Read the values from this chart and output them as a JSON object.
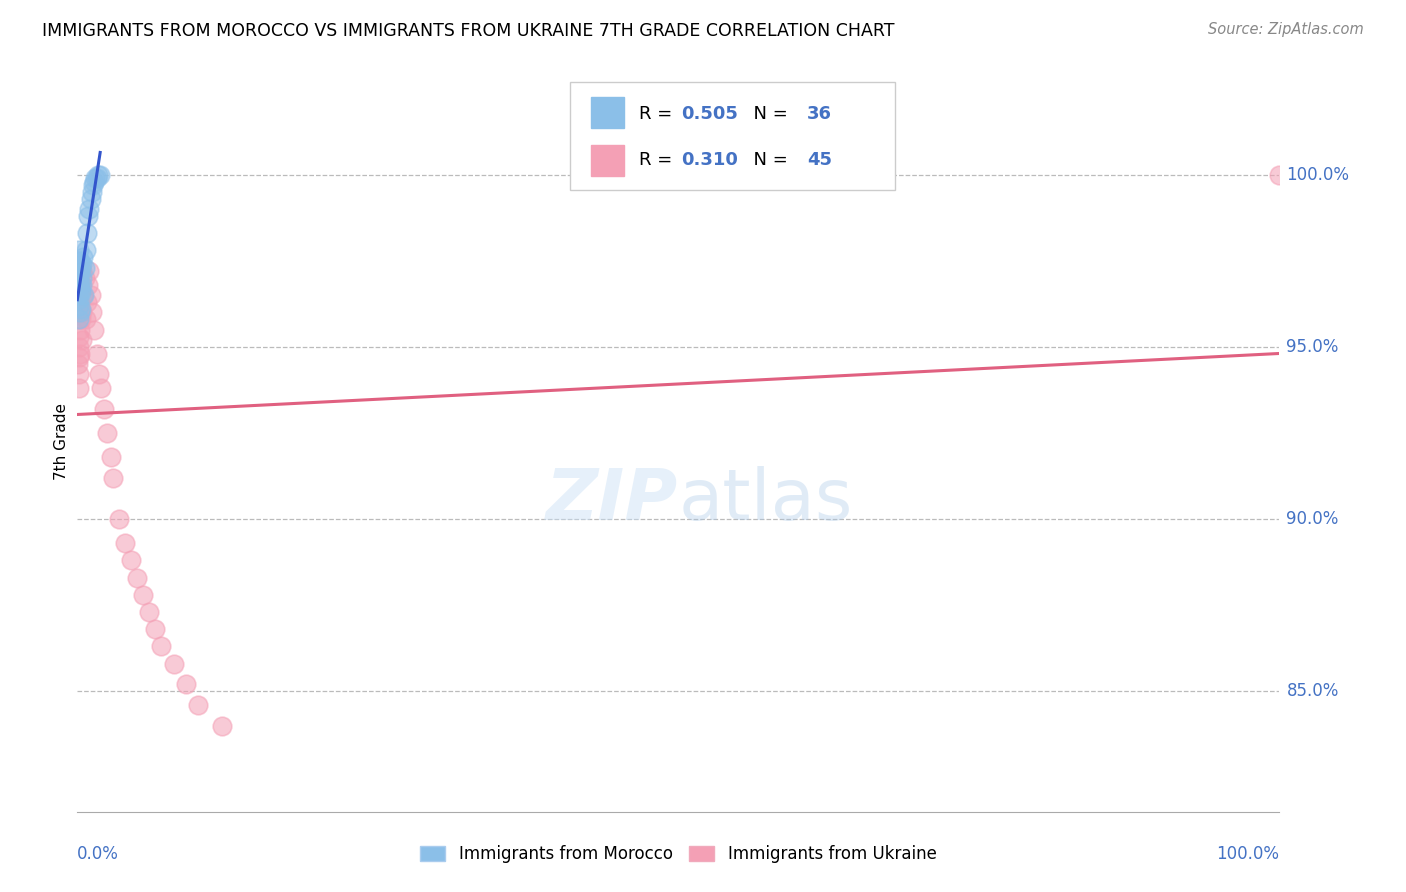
{
  "title": "IMMIGRANTS FROM MOROCCO VS IMMIGRANTS FROM UKRAINE 7TH GRADE CORRELATION CHART",
  "source": "Source: ZipAtlas.com",
  "ylabel": "7th Grade",
  "r_morocco": 0.505,
  "n_morocco": 36,
  "r_ukraine": 0.31,
  "n_ukraine": 45,
  "legend_morocco": "Immigrants from Morocco",
  "legend_ukraine": "Immigrants from Ukraine",
  "color_morocco": "#8BBFE8",
  "color_ukraine": "#F4A0B5",
  "line_color_morocco": "#3355CC",
  "line_color_ukraine": "#E06080",
  "ytick_labels": [
    "100.0%",
    "95.0%",
    "90.0%",
    "85.0%"
  ],
  "ytick_values": [
    1.0,
    0.95,
    0.9,
    0.85
  ],
  "xlim": [
    0.0,
    1.0
  ],
  "ylim": [
    0.815,
    1.03
  ],
  "morocco_x": [
    0.0008,
    0.0009,
    0.001,
    0.001,
    0.0012,
    0.0013,
    0.0015,
    0.0015,
    0.0016,
    0.0018,
    0.002,
    0.002,
    0.0022,
    0.0024,
    0.0025,
    0.003,
    0.003,
    0.0032,
    0.0035,
    0.004,
    0.0042,
    0.005,
    0.0055,
    0.006,
    0.007,
    0.008,
    0.009,
    0.01,
    0.011,
    0.012,
    0.013,
    0.014,
    0.015,
    0.016,
    0.017,
    0.019
  ],
  "morocco_y": [
    0.965,
    0.972,
    0.968,
    0.975,
    0.962,
    0.97,
    0.978,
    0.958,
    0.964,
    0.971,
    0.968,
    0.975,
    0.96,
    0.966,
    0.972,
    0.973,
    0.966,
    0.961,
    0.968,
    0.974,
    0.97,
    0.976,
    0.965,
    0.973,
    0.978,
    0.983,
    0.988,
    0.99,
    0.993,
    0.995,
    0.997,
    0.998,
    0.999,
    0.999,
    1.0,
    1.0
  ],
  "ukraine_x": [
    0.0008,
    0.001,
    0.001,
    0.0013,
    0.0015,
    0.0016,
    0.0018,
    0.002,
    0.002,
    0.0022,
    0.0025,
    0.003,
    0.003,
    0.0035,
    0.004,
    0.0042,
    0.005,
    0.006,
    0.007,
    0.008,
    0.009,
    0.01,
    0.011,
    0.012,
    0.014,
    0.016,
    0.018,
    0.02,
    0.022,
    0.025,
    0.028,
    0.03,
    0.035,
    0.04,
    0.045,
    0.05,
    0.055,
    0.06,
    0.065,
    0.07,
    0.08,
    0.09,
    0.1,
    0.12,
    1.0
  ],
  "ukraine_y": [
    0.945,
    0.958,
    0.95,
    0.942,
    0.953,
    0.947,
    0.938,
    0.961,
    0.955,
    0.948,
    0.963,
    0.968,
    0.958,
    0.952,
    0.972,
    0.96,
    0.965,
    0.97,
    0.958,
    0.963,
    0.968,
    0.972,
    0.965,
    0.96,
    0.955,
    0.948,
    0.942,
    0.938,
    0.932,
    0.925,
    0.918,
    0.912,
    0.9,
    0.893,
    0.888,
    0.883,
    0.878,
    0.873,
    0.868,
    0.863,
    0.858,
    0.852,
    0.846,
    0.84,
    1.0
  ]
}
